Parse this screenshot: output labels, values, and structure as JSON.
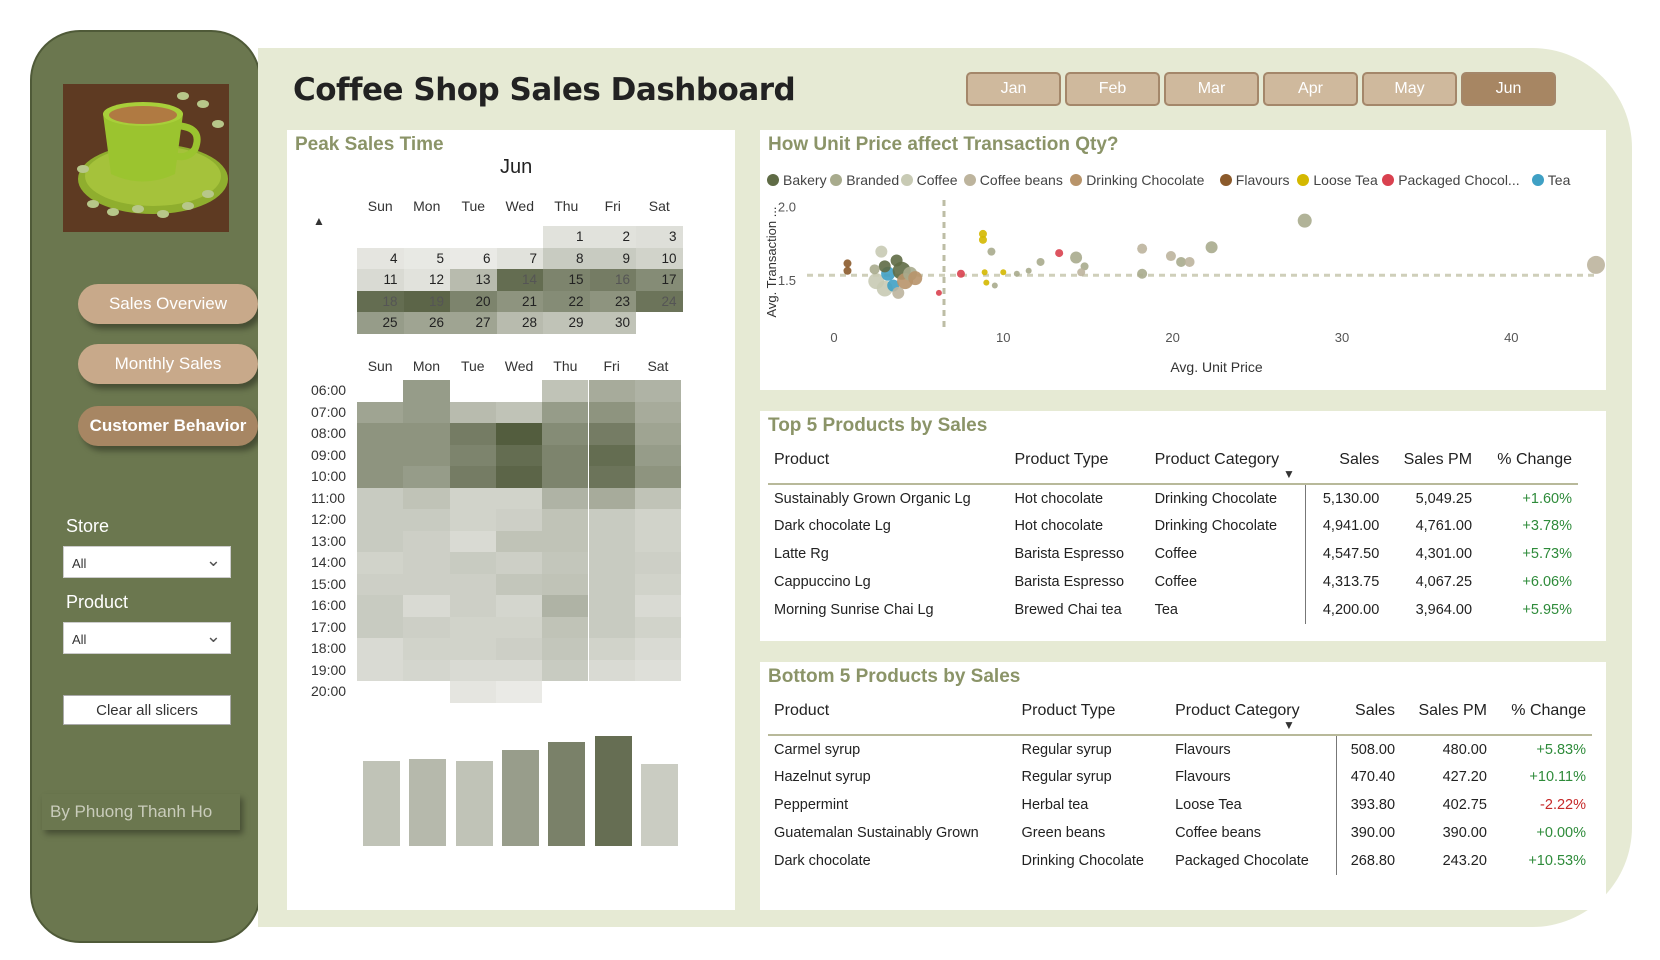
{
  "title": "Coffee Shop Sales Dashboard",
  "months": [
    {
      "label": "Jan",
      "active": false
    },
    {
      "label": "Feb",
      "active": false
    },
    {
      "label": "Mar",
      "active": false
    },
    {
      "label": "Apr",
      "active": false
    },
    {
      "label": "May",
      "active": false
    },
    {
      "label": "Jun",
      "active": true
    }
  ],
  "nav": {
    "sales_overview": "Sales Overview",
    "monthly_sales": "Monthly Sales",
    "customer_behavior": "Customer Behavior"
  },
  "filters": {
    "store_label": "Store",
    "store_value": "All",
    "product_label": "Product",
    "product_value": "All",
    "clear": "Clear all slicers"
  },
  "author": "By Phuong Thanh Ho",
  "peak": {
    "title": "Peak Sales Time",
    "month": "Jun",
    "days": [
      "Sun",
      "Mon",
      "Tue",
      "Wed",
      "Thu",
      "Fri",
      "Sat"
    ],
    "hours": [
      "06:00",
      "07:00",
      "08:00",
      "09:00",
      "10:00",
      "11:00",
      "12:00",
      "13:00",
      "14:00",
      "15:00",
      "16:00",
      "17:00",
      "18:00",
      "19:00",
      "20:00"
    ],
    "calendar": [
      [
        "",
        "",
        "",
        "",
        "1",
        "2",
        "3"
      ],
      [
        "4",
        "5",
        "6",
        "7",
        "8",
        "9",
        "10"
      ],
      [
        "11",
        "12",
        "13",
        "14",
        "15",
        "16",
        "17"
      ],
      [
        "18",
        "19",
        "20",
        "21",
        "22",
        "23",
        "24"
      ],
      [
        "25",
        "26",
        "27",
        "28",
        "29",
        "30",
        ""
      ]
    ],
    "calendar_intensity": [
      [
        null,
        null,
        null,
        null,
        0.1,
        0.1,
        0.12
      ],
      [
        0.08,
        0.06,
        0.05,
        0.1,
        0.25,
        0.25,
        0.2
      ],
      [
        0.15,
        0.1,
        0.35,
        0.85,
        0.7,
        0.75,
        0.65
      ],
      [
        0.85,
        0.9,
        0.7,
        0.6,
        0.65,
        0.6,
        0.8
      ],
      [
        0.55,
        0.5,
        0.5,
        0.35,
        0.3,
        0.3,
        null
      ]
    ],
    "heat": [
      [
        0.0,
        0.55,
        0.0,
        0.0,
        0.3,
        0.45,
        0.4
      ],
      [
        0.5,
        0.55,
        0.35,
        0.3,
        0.55,
        0.6,
        0.45
      ],
      [
        0.6,
        0.6,
        0.75,
        0.95,
        0.65,
        0.75,
        0.5
      ],
      [
        0.6,
        0.6,
        0.7,
        0.85,
        0.7,
        0.85,
        0.55
      ],
      [
        0.6,
        0.55,
        0.75,
        0.9,
        0.7,
        0.8,
        0.6
      ],
      [
        0.25,
        0.3,
        0.2,
        0.2,
        0.4,
        0.45,
        0.3
      ],
      [
        0.25,
        0.25,
        0.2,
        0.22,
        0.3,
        0.25,
        0.2
      ],
      [
        0.25,
        0.22,
        0.15,
        0.3,
        0.3,
        0.25,
        0.2
      ],
      [
        0.2,
        0.22,
        0.25,
        0.22,
        0.28,
        0.25,
        0.22
      ],
      [
        0.22,
        0.22,
        0.22,
        0.28,
        0.3,
        0.25,
        0.2
      ],
      [
        0.25,
        0.15,
        0.22,
        0.18,
        0.4,
        0.25,
        0.15
      ],
      [
        0.25,
        0.22,
        0.2,
        0.2,
        0.3,
        0.25,
        0.2
      ],
      [
        0.15,
        0.2,
        0.2,
        0.22,
        0.28,
        0.2,
        0.15
      ],
      [
        0.15,
        0.18,
        0.15,
        0.15,
        0.25,
        0.15,
        0.12
      ],
      [
        0.0,
        0.0,
        0.08,
        0.05,
        0.0,
        0.0,
        0.0
      ]
    ],
    "weekday_bars": [
      0.6,
      0.62,
      0.6,
      0.68,
      0.74,
      0.78,
      0.58
    ]
  },
  "chart_data": {
    "type": "scatter",
    "title": "How Unit Price affect Transaction Qty?",
    "xlabel": "Avg. Unit Price",
    "ylabel": "Avg. Transaction ...",
    "xlim": [
      -1,
      45
    ],
    "ylim": [
      1.25,
      2.05
    ],
    "xticks": [
      "0",
      "10",
      "20",
      "30",
      "40"
    ],
    "yticks": [
      "1.5",
      "2.0"
    ],
    "ref_x": 6.5,
    "ref_y": 1.54,
    "legend": [
      {
        "name": "Bakery",
        "color": "#5f6b45"
      },
      {
        "name": "Branded",
        "color": "#a8ab8d"
      },
      {
        "name": "Coffee",
        "color": "#c8cab4"
      },
      {
        "name": "Coffee beans",
        "color": "#bdb49d"
      },
      {
        "name": "Drinking Chocolate",
        "color": "#b8946a"
      },
      {
        "name": "Flavours",
        "color": "#8b5a2b"
      },
      {
        "name": "Loose Tea",
        "color": "#d4b800"
      },
      {
        "name": "Packaged Chocol...",
        "color": "#d9414f"
      },
      {
        "name": "Tea",
        "color": "#3fa0c4"
      }
    ],
    "points": [
      {
        "x": 0.8,
        "y": 1.62,
        "c": "#8b5a2b",
        "r": 4
      },
      {
        "x": 0.8,
        "y": 1.57,
        "c": "#8b5a2b",
        "r": 4
      },
      {
        "x": 2.5,
        "y": 1.5,
        "c": "#c8cab4",
        "r": 8
      },
      {
        "x": 3,
        "y": 1.45,
        "c": "#c8cab4",
        "r": 8
      },
      {
        "x": 2.8,
        "y": 1.7,
        "c": "#c8cab4",
        "r": 6
      },
      {
        "x": 3.2,
        "y": 1.55,
        "c": "#3fa0c4",
        "r": 7
      },
      {
        "x": 3.5,
        "y": 1.47,
        "c": "#3fa0c4",
        "r": 6
      },
      {
        "x": 3.0,
        "y": 1.6,
        "c": "#5f6b45",
        "r": 6
      },
      {
        "x": 3.7,
        "y": 1.64,
        "c": "#5f6b45",
        "r": 6
      },
      {
        "x": 4.0,
        "y": 1.57,
        "c": "#5f6b45",
        "r": 9
      },
      {
        "x": 4.2,
        "y": 1.5,
        "c": "#b8946a",
        "r": 8
      },
      {
        "x": 4.5,
        "y": 1.55,
        "c": "#a8ab8d",
        "r": 7
      },
      {
        "x": 4.8,
        "y": 1.52,
        "c": "#b8946a",
        "r": 7
      },
      {
        "x": 3.8,
        "y": 1.42,
        "c": "#bdb49d",
        "r": 6
      },
      {
        "x": 2.4,
        "y": 1.58,
        "c": "#a8ab8d",
        "r": 5
      },
      {
        "x": 6.2,
        "y": 1.42,
        "c": "#d9414f",
        "r": 3
      },
      {
        "x": 7.5,
        "y": 1.55,
        "c": "#d9414f",
        "r": 4
      },
      {
        "x": 8.8,
        "y": 1.82,
        "c": "#d4b800",
        "r": 4
      },
      {
        "x": 8.8,
        "y": 1.78,
        "c": "#d4b800",
        "r": 4
      },
      {
        "x": 8.9,
        "y": 1.56,
        "c": "#d4b800",
        "r": 3
      },
      {
        "x": 9.0,
        "y": 1.49,
        "c": "#d4b800",
        "r": 3
      },
      {
        "x": 10.0,
        "y": 1.56,
        "c": "#d4b800",
        "r": 3
      },
      {
        "x": 9.3,
        "y": 1.7,
        "c": "#a8ab8d",
        "r": 4
      },
      {
        "x": 9.5,
        "y": 1.47,
        "c": "#a8ab8d",
        "r": 3
      },
      {
        "x": 10.8,
        "y": 1.55,
        "c": "#a8ab8d",
        "r": 3
      },
      {
        "x": 11.5,
        "y": 1.57,
        "c": "#a8ab8d",
        "r": 3
      },
      {
        "x": 12.2,
        "y": 1.63,
        "c": "#a8ab8d",
        "r": 4
      },
      {
        "x": 13.3,
        "y": 1.69,
        "c": "#d9414f",
        "r": 4
      },
      {
        "x": 14.3,
        "y": 1.66,
        "c": "#a8ab8d",
        "r": 6
      },
      {
        "x": 14.8,
        "y": 1.6,
        "c": "#a8ab8d",
        "r": 4
      },
      {
        "x": 14.6,
        "y": 1.56,
        "c": "#bdb49d",
        "r": 4
      },
      {
        "x": 18.2,
        "y": 1.72,
        "c": "#bdb49d",
        "r": 5
      },
      {
        "x": 18.2,
        "y": 1.55,
        "c": "#a8ab8d",
        "r": 5
      },
      {
        "x": 19.9,
        "y": 1.67,
        "c": "#bdb49d",
        "r": 5
      },
      {
        "x": 20.5,
        "y": 1.63,
        "c": "#a8ab8d",
        "r": 5
      },
      {
        "x": 21.0,
        "y": 1.63,
        "c": "#bdb49d",
        "r": 5
      },
      {
        "x": 22.3,
        "y": 1.73,
        "c": "#a8ab8d",
        "r": 6
      },
      {
        "x": 27.8,
        "y": 1.91,
        "c": "#a8ab8d",
        "r": 7
      },
      {
        "x": 45,
        "y": 1.61,
        "c": "#bdb49d",
        "r": 9
      }
    ]
  },
  "top5": {
    "title": "Top 5 Products by Sales",
    "headers": [
      "Product",
      "Product Type",
      "Product Category",
      "Sales",
      "Sales PM",
      "% Change"
    ],
    "rows": [
      [
        "Sustainably Grown Organic Lg",
        "Hot chocolate",
        "Drinking Chocolate",
        "5,130.00",
        "5,049.25",
        "+1.60%"
      ],
      [
        "Dark chocolate Lg",
        "Hot chocolate",
        "Drinking Chocolate",
        "4,941.00",
        "4,761.00",
        "+3.78%"
      ],
      [
        "Latte Rg",
        "Barista Espresso",
        "Coffee",
        "4,547.50",
        "4,301.00",
        "+5.73%"
      ],
      [
        "Cappuccino Lg",
        "Barista Espresso",
        "Coffee",
        "4,313.75",
        "4,067.25",
        "+6.06%"
      ],
      [
        "Morning Sunrise Chai Lg",
        "Brewed Chai tea",
        "Tea",
        "4,200.00",
        "3,964.00",
        "+5.95%"
      ]
    ]
  },
  "bottom5": {
    "title": "Bottom 5 Products by Sales",
    "headers": [
      "Product",
      "Product Type",
      "Product Category",
      "Sales",
      "Sales PM",
      "% Change"
    ],
    "rows": [
      [
        "Carmel syrup",
        "Regular syrup",
        "Flavours",
        "508.00",
        "480.00",
        "+5.83%"
      ],
      [
        "Hazelnut syrup",
        "Regular syrup",
        "Flavours",
        "470.40",
        "427.20",
        "+10.11%"
      ],
      [
        "Peppermint",
        "Herbal tea",
        "Loose Tea",
        "393.80",
        "402.75",
        "-2.22%"
      ],
      [
        "Guatemalan Sustainably Grown",
        "Green beans",
        "Coffee beans",
        "390.00",
        "390.00",
        "+0.00%"
      ],
      [
        "Dark chocolate",
        "Drinking Chocolate",
        "Packaged Chocolate",
        "268.80",
        "243.20",
        "+10.53%"
      ]
    ]
  },
  "colors": {
    "sidebar": "#6b774f",
    "main_bg": "#e6ead4",
    "heat_dark": "#4b5535",
    "heat_light": "#f2f2ef",
    "tan_button": "#c8a98a",
    "active_button": "#a78663"
  }
}
